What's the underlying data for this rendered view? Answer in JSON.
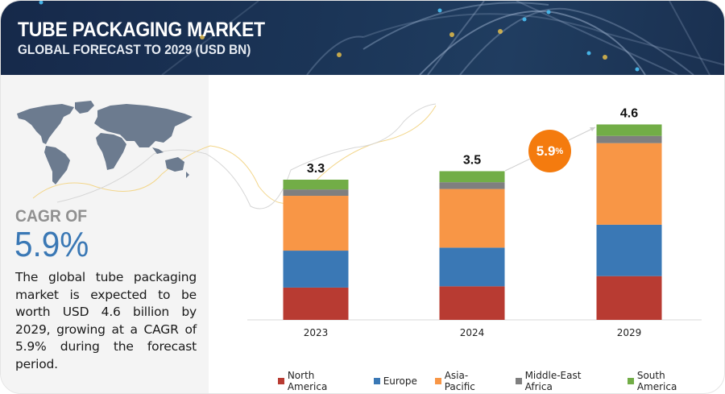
{
  "header": {
    "title": "TUBE PACKAGING MARKET",
    "subtitle": "GLOBAL FORECAST TO 2029 (USD BN)"
  },
  "left_panel": {
    "map_icon": "world-map-icon",
    "cagr_label": "CAGR OF",
    "cagr_value": "5.9%",
    "description": "The global tube packaging market is expected to be worth USD 4.6 billion by 2029, growing at a CAGR of 5.9% during the forecast period."
  },
  "cagr_badge": {
    "value": "5.9",
    "unit": "%",
    "color": "#f47b0e"
  },
  "chart_data": {
    "type": "bar",
    "stacked": true,
    "title": "Tube Packaging Market, Global Forecast to 2029 (USD BN)",
    "xlabel": "",
    "ylabel": "",
    "ylim": [
      0,
      4.6
    ],
    "grid": false,
    "legend_position": "bottom",
    "categories": [
      "2023",
      "2024",
      "2029"
    ],
    "totals": [
      "3.3",
      "3.5",
      "4.6"
    ],
    "series": [
      {
        "name": "North America",
        "color": "#b83b32",
        "values": [
          0.76,
          0.79,
          1.03
        ]
      },
      {
        "name": "Europe",
        "color": "#3a78b5",
        "values": [
          0.87,
          0.91,
          1.21
        ]
      },
      {
        "name": "Asia-Pacific",
        "color": "#f89646",
        "values": [
          1.29,
          1.38,
          1.92
        ]
      },
      {
        "name": "Middle-East Africa",
        "color": "#7f7f7f",
        "values": [
          0.15,
          0.16,
          0.17
        ]
      },
      {
        "name": "South America",
        "color": "#72ad47",
        "values": [
          0.23,
          0.26,
          0.27
        ]
      }
    ]
  }
}
